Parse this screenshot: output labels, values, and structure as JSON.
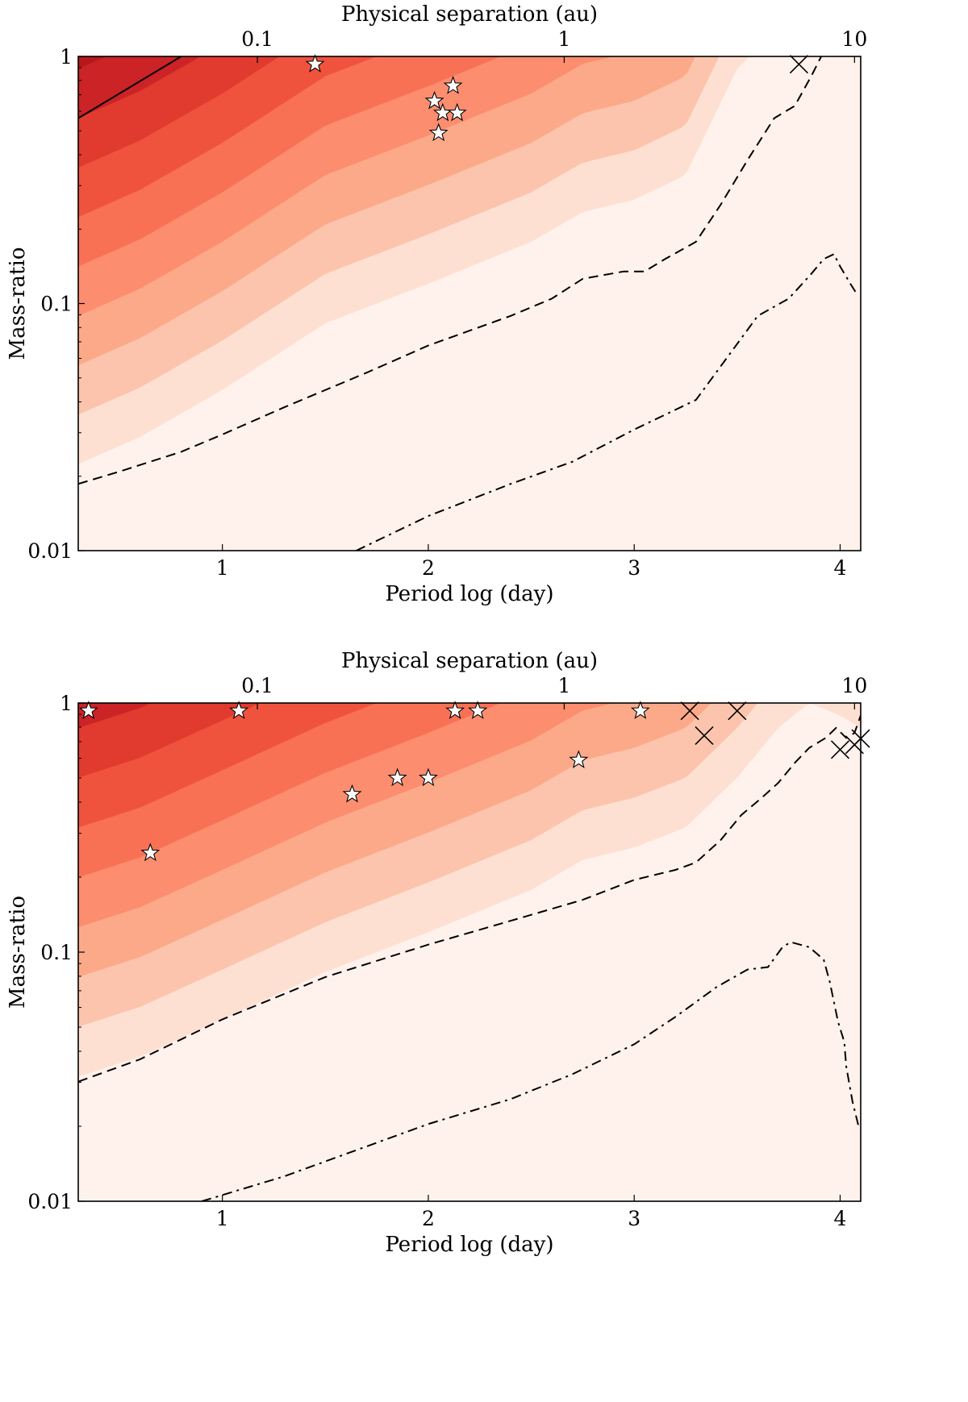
{
  "colors": {
    "band_ramp": [
      "#fff2ec",
      "#fee0d2",
      "#fcc4ad",
      "#fca98a",
      "#fc8d6e",
      "#f87155",
      "#f0533d",
      "#e13a2e",
      "#cc2326",
      "#b8171d",
      "#a60f15",
      "#870810"
    ],
    "line": "#000000",
    "star_fill": "#ffffff"
  },
  "chart_data": [
    {
      "type": "contour",
      "xlabel": "Period log (day)",
      "x2label": "Physical separation (au)",
      "ylabel": "Mass-ratio",
      "xlim": [
        0.3,
        4.1
      ],
      "ylim": [
        0.01,
        1
      ],
      "yscale": "log",
      "xticks": [
        {
          "value": 1,
          "label": "1"
        },
        {
          "value": 2,
          "label": "2"
        },
        {
          "value": 3,
          "label": "3"
        },
        {
          "value": 4,
          "label": "4"
        }
      ],
      "x2ticks": [
        {
          "value": 1.17,
          "label": "0.1"
        },
        {
          "value": 2.66,
          "label": "1"
        },
        {
          "value": 4.07,
          "label": "10"
        }
      ],
      "yticks": [
        {
          "value": 1,
          "label": "1"
        },
        {
          "value": 0.1,
          "label": "0.1"
        },
        {
          "value": 0.01,
          "label": "0.01"
        }
      ],
      "filled_bands": {
        "count": 12,
        "ridge_logq_at_boundary_0": [
          [
            0.3,
            -1.85
          ],
          [
            0.6,
            -1.74
          ],
          [
            1.0,
            -1.55
          ],
          [
            1.5,
            -1.28
          ],
          [
            2.0,
            -1.12
          ],
          [
            2.5,
            -0.95
          ],
          [
            2.75,
            -0.83
          ],
          [
            3.0,
            -0.78
          ],
          [
            3.25,
            -0.68
          ],
          [
            3.5,
            -0.25
          ],
          [
            3.8,
            0.0
          ],
          [
            4.1,
            0.26
          ]
        ],
        "band_spacing_logq": 0.2
      },
      "contour_lines": [
        {
          "style": "solid",
          "points": [
            [
              0.3,
              -0.25
            ],
            [
              0.5,
              -0.15
            ],
            [
              0.8,
              0.0
            ]
          ]
        },
        {
          "style": "dashed",
          "points": [
            [
              0.3,
              -1.73
            ],
            [
              0.5,
              -1.68
            ],
            [
              0.8,
              -1.6
            ],
            [
              1.0,
              -1.53
            ],
            [
              1.3,
              -1.42
            ],
            [
              1.7,
              -1.28
            ],
            [
              2.0,
              -1.17
            ],
            [
              2.4,
              -1.05
            ],
            [
              2.6,
              -0.98
            ],
            [
              2.75,
              -0.9
            ],
            [
              2.95,
              -0.87
            ],
            [
              3.05,
              -0.87
            ],
            [
              3.15,
              -0.82
            ],
            [
              3.3,
              -0.75
            ],
            [
              3.42,
              -0.6
            ],
            [
              3.55,
              -0.42
            ],
            [
              3.68,
              -0.25
            ],
            [
              3.78,
              -0.2
            ],
            [
              3.86,
              -0.08
            ],
            [
              3.92,
              0.02
            ],
            [
              3.98,
              0.08
            ],
            [
              4.02,
              0.12
            ]
          ]
        },
        {
          "style": "dashdot",
          "points": [
            [
              1.65,
              -2.0
            ],
            [
              1.85,
              -1.92
            ],
            [
              2.0,
              -1.86
            ],
            [
              2.4,
              -1.73
            ],
            [
              2.7,
              -1.64
            ],
            [
              3.0,
              -1.51
            ],
            [
              3.3,
              -1.39
            ],
            [
              3.45,
              -1.22
            ],
            [
              3.6,
              -1.05
            ],
            [
              3.75,
              -0.98
            ],
            [
              3.86,
              -0.88
            ],
            [
              3.92,
              -0.82
            ],
            [
              3.97,
              -0.8
            ],
            [
              4.0,
              -0.85
            ],
            [
              4.05,
              -0.92
            ],
            [
              4.08,
              -0.96
            ]
          ]
        }
      ],
      "stars": [
        [
          1.45,
          0.93
        ],
        [
          2.03,
          0.66
        ],
        [
          2.12,
          0.76
        ],
        [
          2.07,
          0.59
        ],
        [
          2.14,
          0.59
        ],
        [
          2.05,
          0.49
        ]
      ],
      "crosses": [
        [
          3.8,
          0.93
        ]
      ]
    },
    {
      "type": "contour",
      "xlabel": "Period log (day)",
      "x2label": "Physical separation (au)",
      "ylabel": "Mass-ratio",
      "xlim": [
        0.3,
        4.1
      ],
      "ylim": [
        0.01,
        1
      ],
      "yscale": "log",
      "xticks": [
        {
          "value": 1,
          "label": "1"
        },
        {
          "value": 2,
          "label": "2"
        },
        {
          "value": 3,
          "label": "3"
        },
        {
          "value": 4,
          "label": "4"
        }
      ],
      "x2ticks": [
        {
          "value": 1.17,
          "label": "0.1"
        },
        {
          "value": 2.66,
          "label": "1"
        },
        {
          "value": 4.07,
          "label": "10"
        }
      ],
      "yticks": [
        {
          "value": 1,
          "label": "1"
        },
        {
          "value": 0.1,
          "label": "0.1"
        },
        {
          "value": 0.01,
          "label": "0.01"
        }
      ],
      "filled_bands": {
        "count": 12,
        "ridge_logq_at_boundary_0": [
          [
            0.3,
            -1.7
          ],
          [
            0.6,
            -1.62
          ],
          [
            1.0,
            -1.47
          ],
          [
            1.5,
            -1.28
          ],
          [
            2.0,
            -1.12
          ],
          [
            2.5,
            -0.95
          ],
          [
            2.75,
            -0.83
          ],
          [
            3.0,
            -0.78
          ],
          [
            3.25,
            -0.7
          ],
          [
            3.5,
            -0.5
          ],
          [
            3.7,
            -0.3
          ],
          [
            3.85,
            -0.2
          ],
          [
            4.0,
            -0.25
          ],
          [
            4.1,
            -0.3
          ]
        ],
        "band_spacing_logq": 0.2
      },
      "contour_lines": [
        {
          "style": "dashed",
          "points": [
            [
              0.3,
              -1.52
            ],
            [
              0.6,
              -1.43
            ],
            [
              1.0,
              -1.27
            ],
            [
              1.5,
              -1.1
            ],
            [
              2.0,
              -0.97
            ],
            [
              2.5,
              -0.85
            ],
            [
              2.75,
              -0.79
            ],
            [
              3.0,
              -0.71
            ],
            [
              3.2,
              -0.67
            ],
            [
              3.3,
              -0.64
            ],
            [
              3.42,
              -0.55
            ],
            [
              3.52,
              -0.45
            ],
            [
              3.62,
              -0.38
            ],
            [
              3.7,
              -0.32
            ],
            [
              3.78,
              -0.24
            ],
            [
              3.85,
              -0.18
            ],
            [
              3.93,
              -0.14
            ],
            [
              3.98,
              -0.1
            ],
            [
              4.03,
              -0.14
            ],
            [
              4.07,
              -0.12
            ],
            [
              4.1,
              -0.05
            ]
          ]
        },
        {
          "style": "dashdot",
          "points": [
            [
              0.9,
              -2.0
            ],
            [
              1.3,
              -1.9
            ],
            [
              1.7,
              -1.78
            ],
            [
              2.0,
              -1.69
            ],
            [
              2.4,
              -1.59
            ],
            [
              2.7,
              -1.49
            ],
            [
              3.0,
              -1.37
            ],
            [
              3.2,
              -1.26
            ],
            [
              3.4,
              -1.14
            ],
            [
              3.55,
              -1.07
            ],
            [
              3.65,
              -1.06
            ],
            [
              3.72,
              -0.98
            ],
            [
              3.76,
              -0.96
            ],
            [
              3.85,
              -0.98
            ],
            [
              3.92,
              -1.03
            ],
            [
              3.95,
              -1.12
            ],
            [
              3.97,
              -1.2
            ],
            [
              3.99,
              -1.28
            ],
            [
              4.02,
              -1.36
            ],
            [
              4.03,
              -1.46
            ],
            [
              4.06,
              -1.6
            ],
            [
              4.09,
              -1.7
            ]
          ]
        }
      ],
      "stars": [
        [
          0.35,
          0.93
        ],
        [
          0.65,
          0.25
        ],
        [
          1.08,
          0.93
        ],
        [
          1.63,
          0.43
        ],
        [
          1.85,
          0.5
        ],
        [
          2.0,
          0.5
        ],
        [
          2.13,
          0.93
        ],
        [
          2.24,
          0.93
        ],
        [
          2.73,
          0.59
        ],
        [
          3.03,
          0.93
        ]
      ],
      "crosses": [
        [
          3.27,
          0.93
        ],
        [
          3.34,
          0.74
        ],
        [
          3.5,
          0.93
        ],
        [
          4.0,
          0.65
        ],
        [
          4.07,
          0.68
        ],
        [
          4.1,
          0.72
        ]
      ]
    }
  ]
}
